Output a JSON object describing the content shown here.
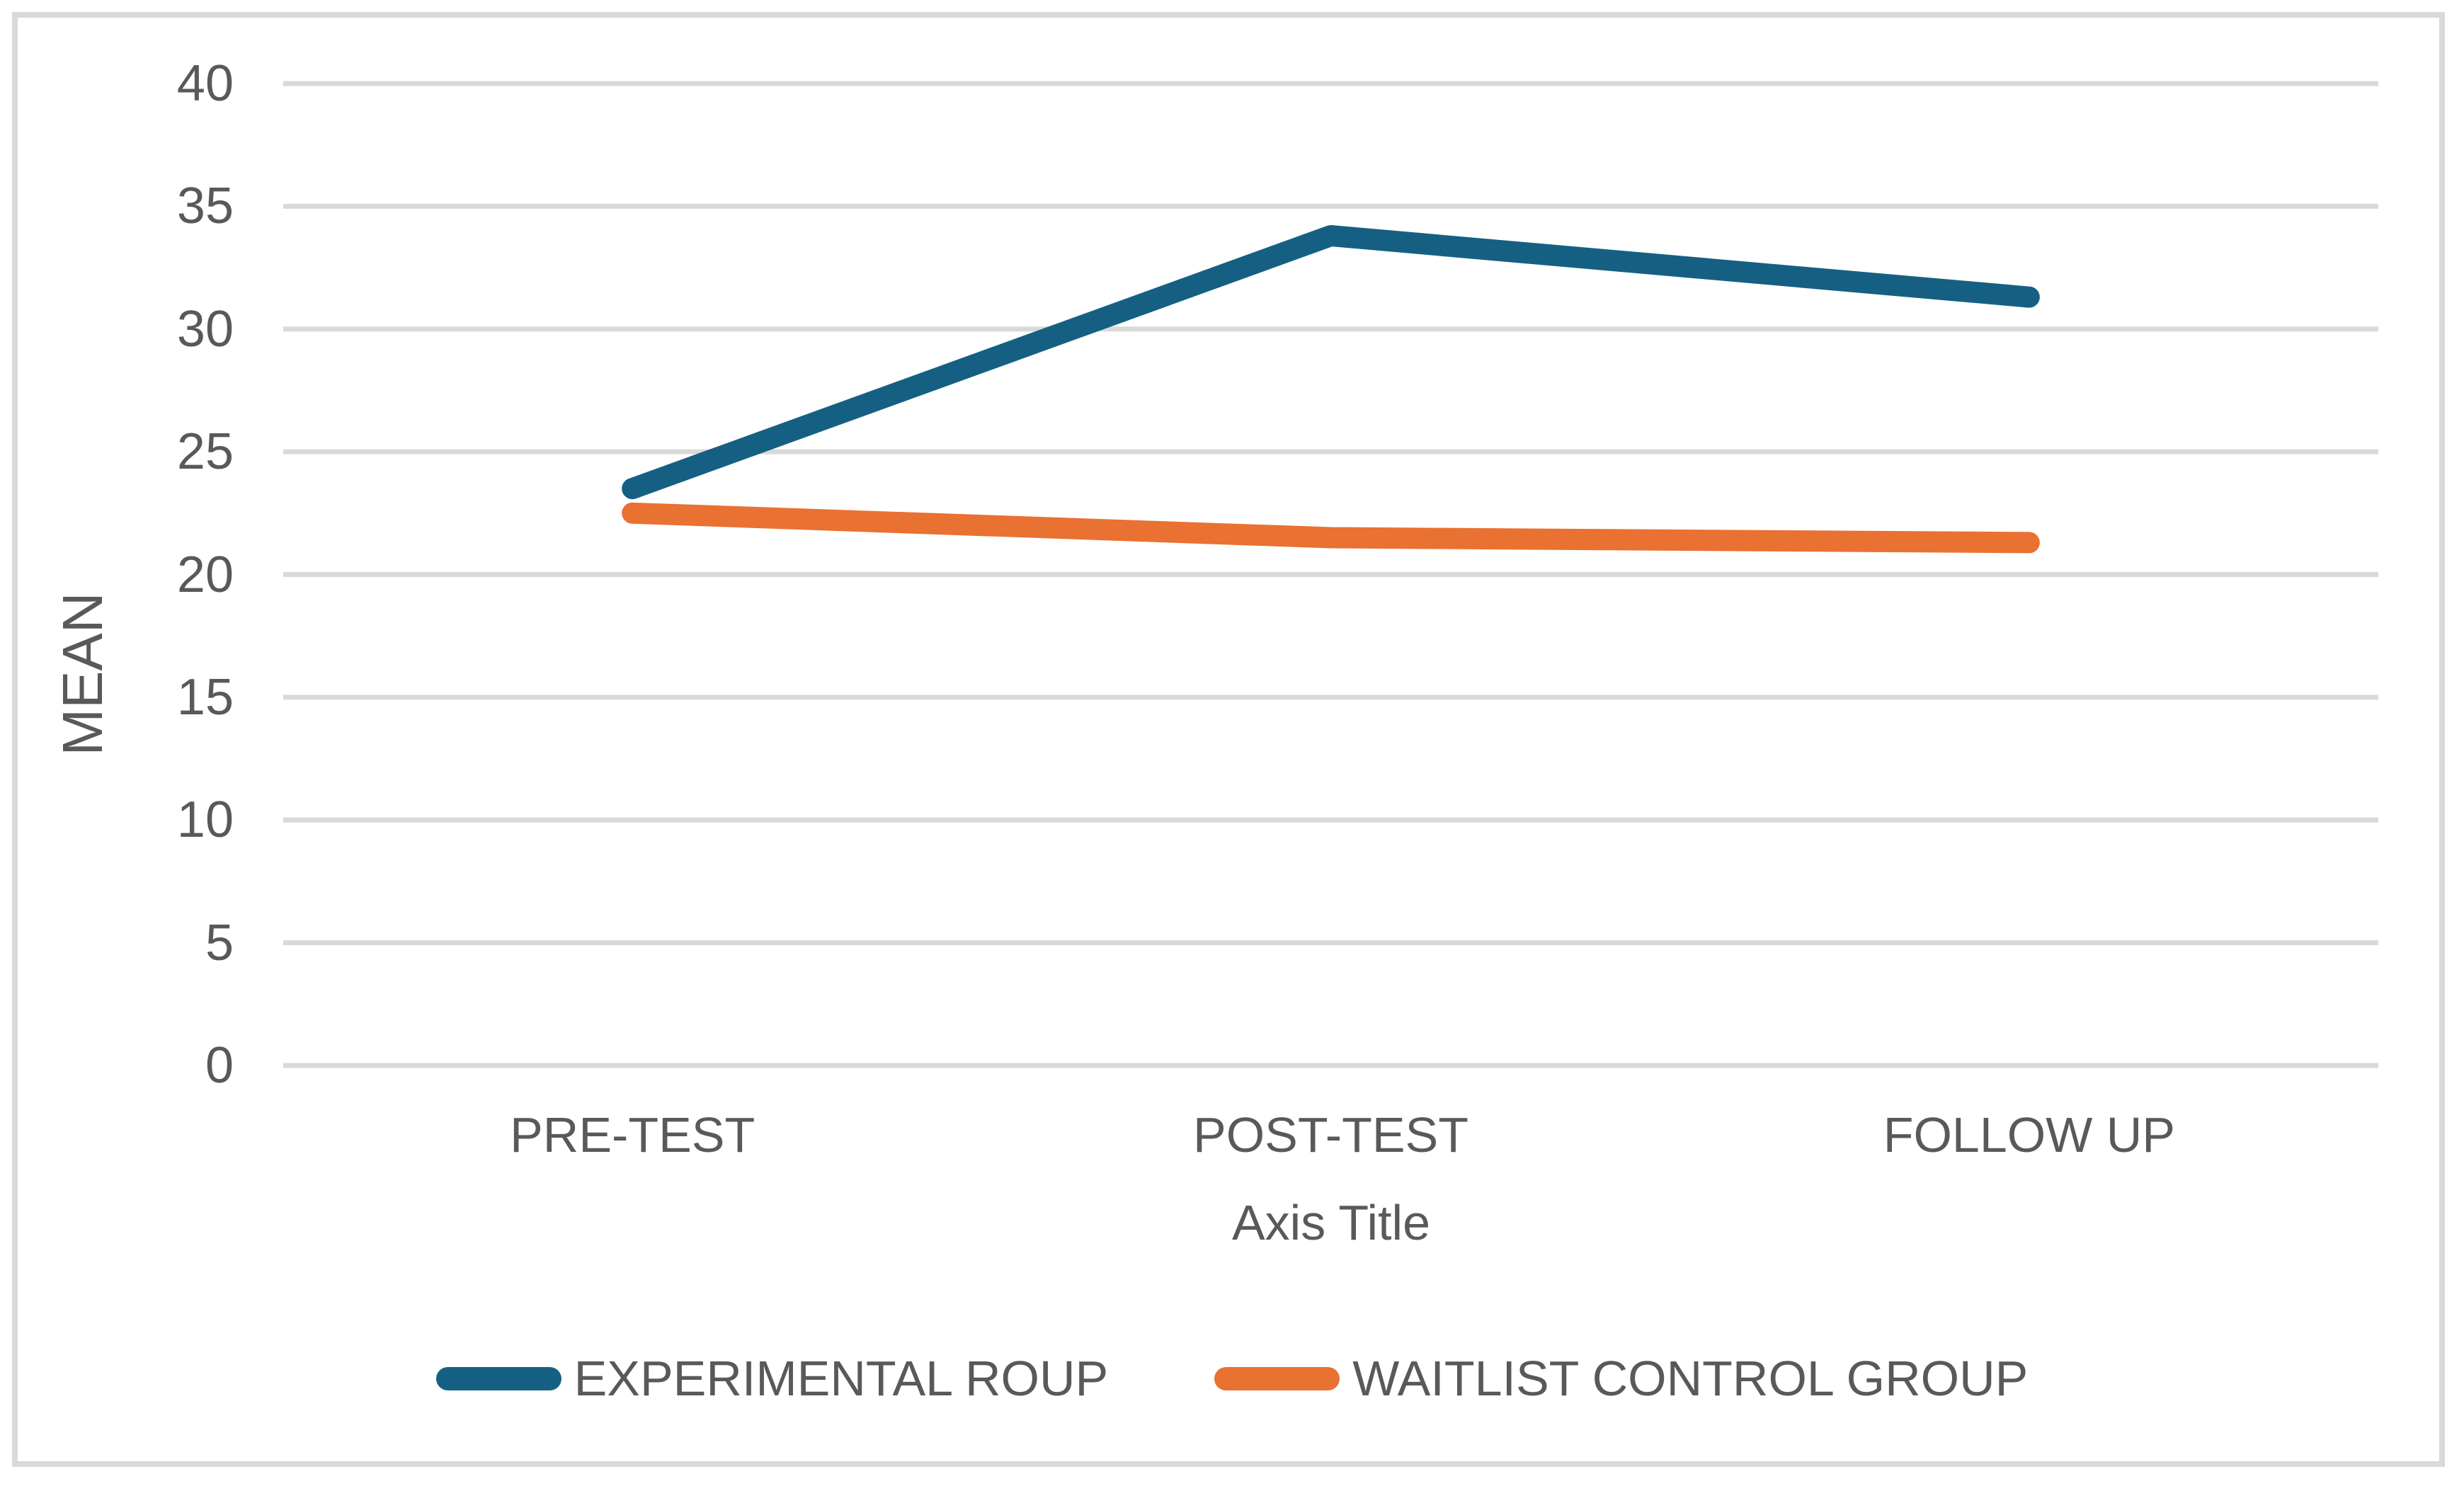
{
  "chart_data": {
    "type": "line",
    "title": "",
    "categories": [
      "PRE-TEST",
      "POST-TEST",
      "FOLLOW UP"
    ],
    "series": [
      {
        "name": "EXPERIMENTAL ROUP",
        "values": [
          23.5,
          33.8,
          31.3
        ],
        "color": "#156082"
      },
      {
        "name": "WAITLIST CONTROL GROUP",
        "values": [
          22.5,
          21.5,
          21.3
        ],
        "color": "#E97132"
      }
    ],
    "xlabel": "Axis Title",
    "ylabel": "MEAN",
    "ylim": [
      0,
      40
    ],
    "yticks": [
      0,
      5,
      10,
      15,
      20,
      25,
      30,
      35,
      40
    ],
    "grid": true,
    "legend_position": "bottom",
    "gridline_color": "#D9D9D9",
    "text_color": "#595959",
    "border_color": "#D9D9D9"
  }
}
